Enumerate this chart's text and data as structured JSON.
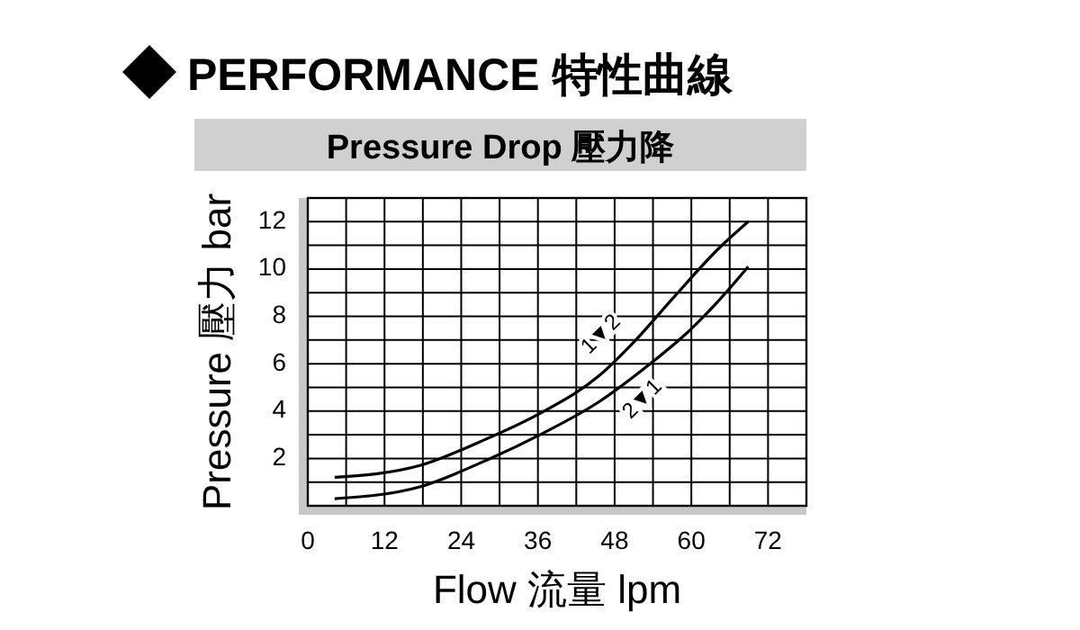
{
  "chart_data": {
    "type": "line",
    "title": "PERFORMANCE 特性曲線",
    "subtitle": "Pressure Drop 壓力降",
    "xlabel": "Flow 流量 lpm",
    "ylabel": "Pressure 壓力 bar",
    "xlim": [
      0,
      78
    ],
    "xticks": [
      0,
      {
        "value": 6,
        "label": null
      },
      12,
      {
        "value": 18,
        "label": null
      },
      24,
      {
        "value": 30,
        "label": null
      },
      36,
      {
        "value": 42,
        "label": null
      },
      48,
      {
        "value": 54,
        "label": null
      },
      60,
      {
        "value": 66,
        "label": null
      },
      72,
      {
        "value": 78,
        "label": null
      }
    ],
    "ylim": [
      0,
      13
    ],
    "yticks": [
      {
        "value": 0,
        "label": null
      },
      {
        "value": 1,
        "label": null
      },
      2,
      {
        "value": 3,
        "label": null
      },
      4,
      {
        "value": 5,
        "label": null
      },
      6,
      {
        "value": 7,
        "label": null
      },
      8,
      {
        "value": 9,
        "label": null
      },
      10,
      {
        "value": 11,
        "label": null
      },
      12,
      {
        "value": 13,
        "label": null
      }
    ],
    "grid": true,
    "marker": "none",
    "line_style": "solid",
    "series": [
      {
        "color": "#000000",
        "x": [
          4.2,
          17.5,
          26.9,
          36.3,
          45.6,
          51.3,
          56.9,
          64.4,
          68.9
        ],
        "values": [
          1.2,
          1.7,
          2.7,
          3.9,
          5.5,
          7.0,
          8.7,
          10.9,
          12.0
        ]
      },
      {
        "color": "#000000",
        "x": [
          4.2,
          17.5,
          26.9,
          36.3,
          45.6,
          53.1,
          59.7,
          64.4,
          68.9
        ],
        "values": [
          0.3,
          0.8,
          1.8,
          3.0,
          4.4,
          5.9,
          7.4,
          8.7,
          10.1
        ]
      }
    ],
    "annotations": [
      "1▼2",
      "2▼1"
    ]
  }
}
